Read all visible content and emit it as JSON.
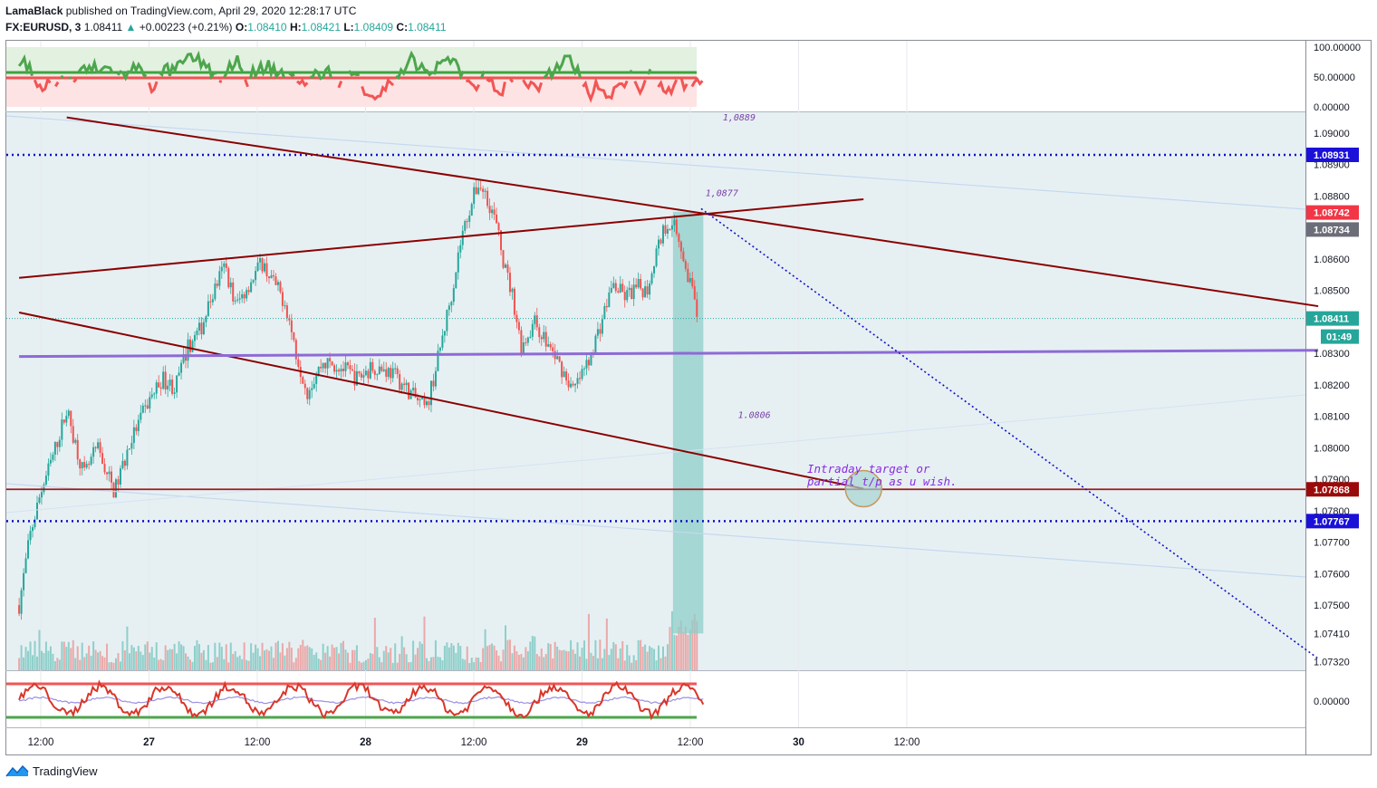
{
  "header": {
    "author": "LamaBlack",
    "published_text": "published on TradingView.com, April 29, 2020 12:28:17 UTC",
    "symbol": "FX:EURUSD, 3",
    "last": "1.08411",
    "arrow": "▲",
    "change": "+0.00223 (+0.21%)",
    "o_label": "O:",
    "o": "1.08410",
    "h_label": "H:",
    "h": "1.08421",
    "l_label": "L:",
    "l": "1.08409",
    "c_label": "C:",
    "c": "1.08411"
  },
  "footer": {
    "brand": "TradingView",
    "logo_icon": "tradingview-logo-icon"
  },
  "colors": {
    "candle_up": "#26a69a",
    "candle_down": "#ef5350",
    "trend": "#8b0000",
    "dotted_blue": "#1010c8",
    "purple": "#8e6ad6",
    "rect_fill": "#8fcfc9",
    "bg_zone": "#e6f0f3",
    "badge_blue": "#1a10d8",
    "badge_red": "#f23645",
    "badge_gray": "#6b6e78",
    "badge_teal": "#26a69a",
    "badge_darkred": "#9b0a0a"
  },
  "chart_data": {
    "type": "candlestick",
    "symbol": "FX:EURUSD",
    "timeframe": "3",
    "ylim": [
      1.0732,
      1.0905
    ],
    "price_ticks": [
      "1.09000",
      "1.08900",
      "1.08800",
      "1.08600",
      "1.08500",
      "1.08300",
      "1.08200",
      "1.08100",
      "1.08000",
      "1.07900",
      "1.07800",
      "1.07700",
      "1.07600",
      "1.07500",
      "1.07410",
      "1.07320"
    ],
    "price_tick_values": [
      1.09,
      1.089,
      1.088,
      1.086,
      1.085,
      1.083,
      1.082,
      1.081,
      1.08,
      1.079,
      1.078,
      1.077,
      1.076,
      1.075,
      1.0741,
      1.0732
    ],
    "time_ticks": [
      "12:00",
      "27",
      "12:00",
      "28",
      "12:00",
      "29",
      "12:00",
      "30",
      "12:00"
    ],
    "time_tick_days": [
      0.5,
      1,
      1.5,
      2,
      2.5,
      3,
      3.5,
      4,
      4.5
    ],
    "x_range_days": [
      0.4,
      6.4
    ],
    "price_path": [
      [
        0.4,
        1.075
      ],
      [
        0.45,
        1.0772
      ],
      [
        0.5,
        1.0786
      ],
      [
        0.55,
        1.0796
      ],
      [
        0.62,
        1.0812
      ],
      [
        0.7,
        1.0791
      ],
      [
        0.76,
        1.08
      ],
      [
        0.84,
        1.0786
      ],
      [
        0.92,
        1.0803
      ],
      [
        1.0,
        1.0815
      ],
      [
        1.06,
        1.0822
      ],
      [
        1.12,
        1.0819
      ],
      [
        1.18,
        1.0832
      ],
      [
        1.24,
        1.0838
      ],
      [
        1.3,
        1.085
      ],
      [
        1.35,
        1.0858
      ],
      [
        1.4,
        1.0845
      ],
      [
        1.47,
        1.0853
      ],
      [
        1.52,
        1.0859
      ],
      [
        1.58,
        1.0852
      ],
      [
        1.63,
        1.0846
      ],
      [
        1.68,
        1.083
      ],
      [
        1.73,
        1.0818
      ],
      [
        1.8,
        1.0827
      ],
      [
        1.88,
        1.0826
      ],
      [
        1.96,
        1.0822
      ],
      [
        2.04,
        1.0826
      ],
      [
        2.12,
        1.0824
      ],
      [
        2.2,
        1.0818
      ],
      [
        2.28,
        1.0812
      ],
      [
        2.34,
        1.083
      ],
      [
        2.4,
        1.085
      ],
      [
        2.44,
        1.0866
      ],
      [
        2.48,
        1.0876
      ],
      [
        2.52,
        1.0884
      ],
      [
        2.56,
        1.088
      ],
      [
        2.6,
        1.0872
      ],
      [
        2.64,
        1.0858
      ],
      [
        2.68,
        1.0848
      ],
      [
        2.72,
        1.0832
      ],
      [
        2.78,
        1.084
      ],
      [
        2.84,
        1.0833
      ],
      [
        2.9,
        1.0826
      ],
      [
        2.96,
        1.0818
      ],
      [
        3.02,
        1.0826
      ],
      [
        3.08,
        1.0838
      ],
      [
        3.14,
        1.0852
      ],
      [
        3.2,
        1.0848
      ],
      [
        3.26,
        1.0851
      ],
      [
        3.3,
        1.085
      ],
      [
        3.34,
        1.0862
      ],
      [
        3.38,
        1.087
      ],
      [
        3.42,
        1.0873
      ],
      [
        3.45,
        1.0866
      ],
      [
        3.48,
        1.0858
      ],
      [
        3.52,
        1.0846
      ],
      [
        3.54,
        1.0841
      ]
    ],
    "horizontal_levels": [
      {
        "price": 1.08931,
        "label": "1.08931",
        "style": "dotted-blue"
      },
      {
        "price": 1.07868,
        "label": "1.07868",
        "style": "solid-darkred"
      },
      {
        "price": 1.07767,
        "label": "1.07767",
        "style": "dotted-blue"
      }
    ],
    "price_badges": [
      {
        "price": 1.08742,
        "label": "1.08742",
        "color": "red"
      },
      {
        "price": 1.08734,
        "label": "1.08734",
        "color": "gray"
      },
      {
        "price": 1.08411,
        "label": "1.08411",
        "color": "teal"
      }
    ],
    "countdown": "01:49",
    "trendlines": [
      {
        "name": "upper-channel",
        "from": [
          0.62,
          1.0905
        ],
        "to": [
          6.4,
          1.0845
        ]
      },
      {
        "name": "lower-channel",
        "from": [
          0.4,
          1.0843
        ],
        "to": [
          4.3,
          1.0787
        ]
      },
      {
        "name": "rising-line",
        "from": [
          0.4,
          1.0854
        ],
        "to": [
          4.3,
          1.0879
        ]
      },
      {
        "name": "purple-line",
        "from": [
          0.4,
          1.0829
        ],
        "to": [
          6.4,
          1.0831
        ]
      },
      {
        "name": "dotted-projection",
        "from": [
          3.55,
          1.0876
        ],
        "to": [
          6.4,
          1.0733
        ]
      }
    ],
    "annotations": [
      {
        "text": "1,0889",
        "x": 3.65,
        "y": 1.0904
      },
      {
        "text": "1,0877",
        "x": 3.57,
        "y": 1.088
      },
      {
        "text": "1.0806",
        "x": 3.72,
        "y": 1.08095
      }
    ],
    "note_lines": [
      "Intraday target or",
      "partial t/p as u wish."
    ],
    "target_circle": {
      "x": 4.3,
      "y": 1.0787
    },
    "highlight_zone": {
      "x": [
        3.42,
        3.56
      ],
      "y": [
        1.0741,
        1.0875
      ]
    },
    "rsi_panel": {
      "ticks": [
        "100.00000",
        "50.00000",
        "0.00000"
      ],
      "tick_values": [
        100,
        50,
        0
      ],
      "ylim": [
        0,
        100
      ]
    },
    "osc_panel": {
      "ticks": [
        "0.00000"
      ],
      "tick_values": [
        0
      ]
    }
  }
}
